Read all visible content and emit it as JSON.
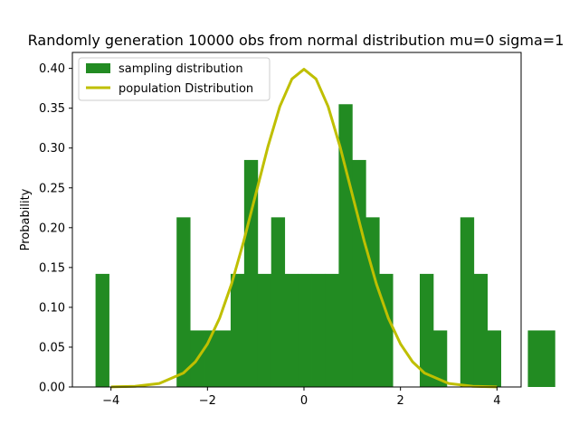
{
  "chart_data": {
    "type": "bar",
    "title": "Randomly generation 10000 obs from normal distribution mu=0 sigma=1",
    "xlabel": "",
    "ylabel": "Probability",
    "xlim": [
      -4.8,
      4.5
    ],
    "ylim": [
      0.0,
      0.42
    ],
    "xticks": [
      -4,
      -2,
      0,
      2,
      4
    ],
    "xtick_labels": [
      "−4",
      "−2",
      "0",
      "2",
      "4"
    ],
    "yticks": [
      0.0,
      0.05,
      0.1,
      0.15,
      0.2,
      0.25,
      0.3,
      0.35,
      0.4
    ],
    "ytick_labels": [
      "0.00",
      "0.05",
      "0.10",
      "0.15",
      "0.20",
      "0.25",
      "0.30",
      "0.35",
      "0.40"
    ],
    "grid": false,
    "legend_position": "top-left",
    "series": [
      {
        "name": "sampling distribution",
        "kind": "histogram",
        "color": "#228b22",
        "bin_start": -4.32,
        "bin_width": 0.28,
        "values": [
          0.142,
          0,
          0,
          0,
          0,
          0,
          0.213,
          0.071,
          0.071,
          0.071,
          0.142,
          0.285,
          0.142,
          0.213,
          0.142,
          0.142,
          0.142,
          0.142,
          0.355,
          0.285,
          0.213,
          0.142,
          0,
          0,
          0.142,
          0.071,
          0,
          0.213,
          0.142,
          0.071,
          0,
          0,
          0.071,
          0.071
        ]
      },
      {
        "name": "population Distribution",
        "kind": "line",
        "color": "#bfbf00",
        "x": [
          -4.0,
          -3.5,
          -3.0,
          -2.5,
          -2.25,
          -2.0,
          -1.75,
          -1.5,
          -1.25,
          -1.0,
          -0.75,
          -0.5,
          -0.25,
          0.0,
          0.25,
          0.5,
          0.75,
          1.0,
          1.25,
          1.5,
          1.75,
          2.0,
          2.25,
          2.5,
          3.0,
          3.5,
          4.0
        ],
        "y": [
          0.0001,
          0.0009,
          0.0044,
          0.0175,
          0.0317,
          0.054,
          0.0863,
          0.1295,
          0.1826,
          0.242,
          0.3011,
          0.3521,
          0.3867,
          0.3989,
          0.3867,
          0.3521,
          0.3011,
          0.242,
          0.1826,
          0.1295,
          0.0863,
          0.054,
          0.0317,
          0.0175,
          0.0044,
          0.0009,
          0.0001
        ]
      }
    ]
  }
}
